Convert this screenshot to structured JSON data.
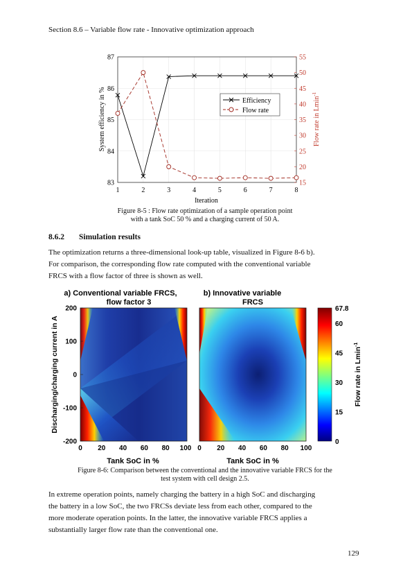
{
  "header": {
    "section": "Section 8.6 – Variable flow rate - Innovative optimization approach"
  },
  "figure_8_5": {
    "caption_line1": "Figure 8-5 : Flow rate optimization of a sample operation point",
    "caption_line2": "with a tank SoC 50 % and a charging current of 50 A.",
    "chart_data": {
      "type": "line",
      "xlabel": "Iteration",
      "ylabel_left": "System efficiency in %",
      "ylabel_right": "Flow rate in Lmin",
      "ylabel_right_sup": "-1",
      "x": [
        1,
        2,
        3,
        4,
        5,
        6,
        7,
        8
      ],
      "xlim": [
        1,
        8
      ],
      "ylim_left": [
        83,
        87
      ],
      "ylim_right": [
        15,
        55
      ],
      "yticks_left": [
        83,
        84,
        85,
        86,
        87
      ],
      "yticks_right": [
        15,
        20,
        25,
        30,
        35,
        40,
        45,
        50,
        55
      ],
      "legend_position": "center-right",
      "grid": true,
      "series": [
        {
          "name": "Efficiency",
          "axis": "left",
          "color": "#000000",
          "marker": "x",
          "values": [
            85.78,
            83.2,
            86.37,
            86.4,
            86.4,
            86.4,
            86.4,
            86.4
          ]
        },
        {
          "name": "Flow rate",
          "axis": "right",
          "color": "#a0281e",
          "marker": "o",
          "values": [
            37,
            50,
            20,
            16.5,
            16.3,
            16.5,
            16.3,
            16.5
          ]
        }
      ]
    }
  },
  "section_8_6_2": {
    "number": "8.6.2",
    "title": "Simulation results"
  },
  "para1": [
    "The optimization returns a three-dimensional look-up table, visualized in Figure 8-6 b).",
    "For comparison, the corresponding flow rate computed with the conventional variable",
    "FRCS with a flow factor of three is shown as well."
  ],
  "figure_8_6": {
    "caption_line1": "Figure 8-6: Comparison between the conventional and the innovative variable FRCS for the",
    "caption_line2": "test system with cell design 2.5.",
    "chart_data": {
      "type": "heatmap",
      "panels": [
        {
          "title_line1": "a) Conventional variable FRCS,",
          "title_line2": "flow factor 3"
        },
        {
          "title_line1": "b) Innovative variable",
          "title_line2": "FRCS"
        }
      ],
      "xlabel": "Tank SoC in %",
      "ylabel": "Discharging/charging current in A",
      "xticks": [
        "0",
        "20",
        "40",
        "60",
        "80",
        "100"
      ],
      "yticks": [
        "200",
        "100",
        "0",
        "-100",
        "-200"
      ],
      "xlim": [
        0,
        100
      ],
      "ylim": [
        -200,
        200
      ],
      "colorbar": {
        "label": "Flow rate in Lmin",
        "label_sup": "-1",
        "range": [
          0,
          67.8
        ],
        "ticks": [
          "67.8",
          "60",
          "45",
          "30",
          "15",
          "0"
        ]
      }
    }
  },
  "para2": [
    "In extreme operation points, namely charging the battery in a high SoC and discharging",
    "the battery in a low SoC, the two FRCSs deviate less from each other, compared to the",
    "more moderate operation points. In the latter, the innovative variable FRCS applies a",
    "substantially larger flow rate than the conventional one."
  ],
  "page_number": "129"
}
